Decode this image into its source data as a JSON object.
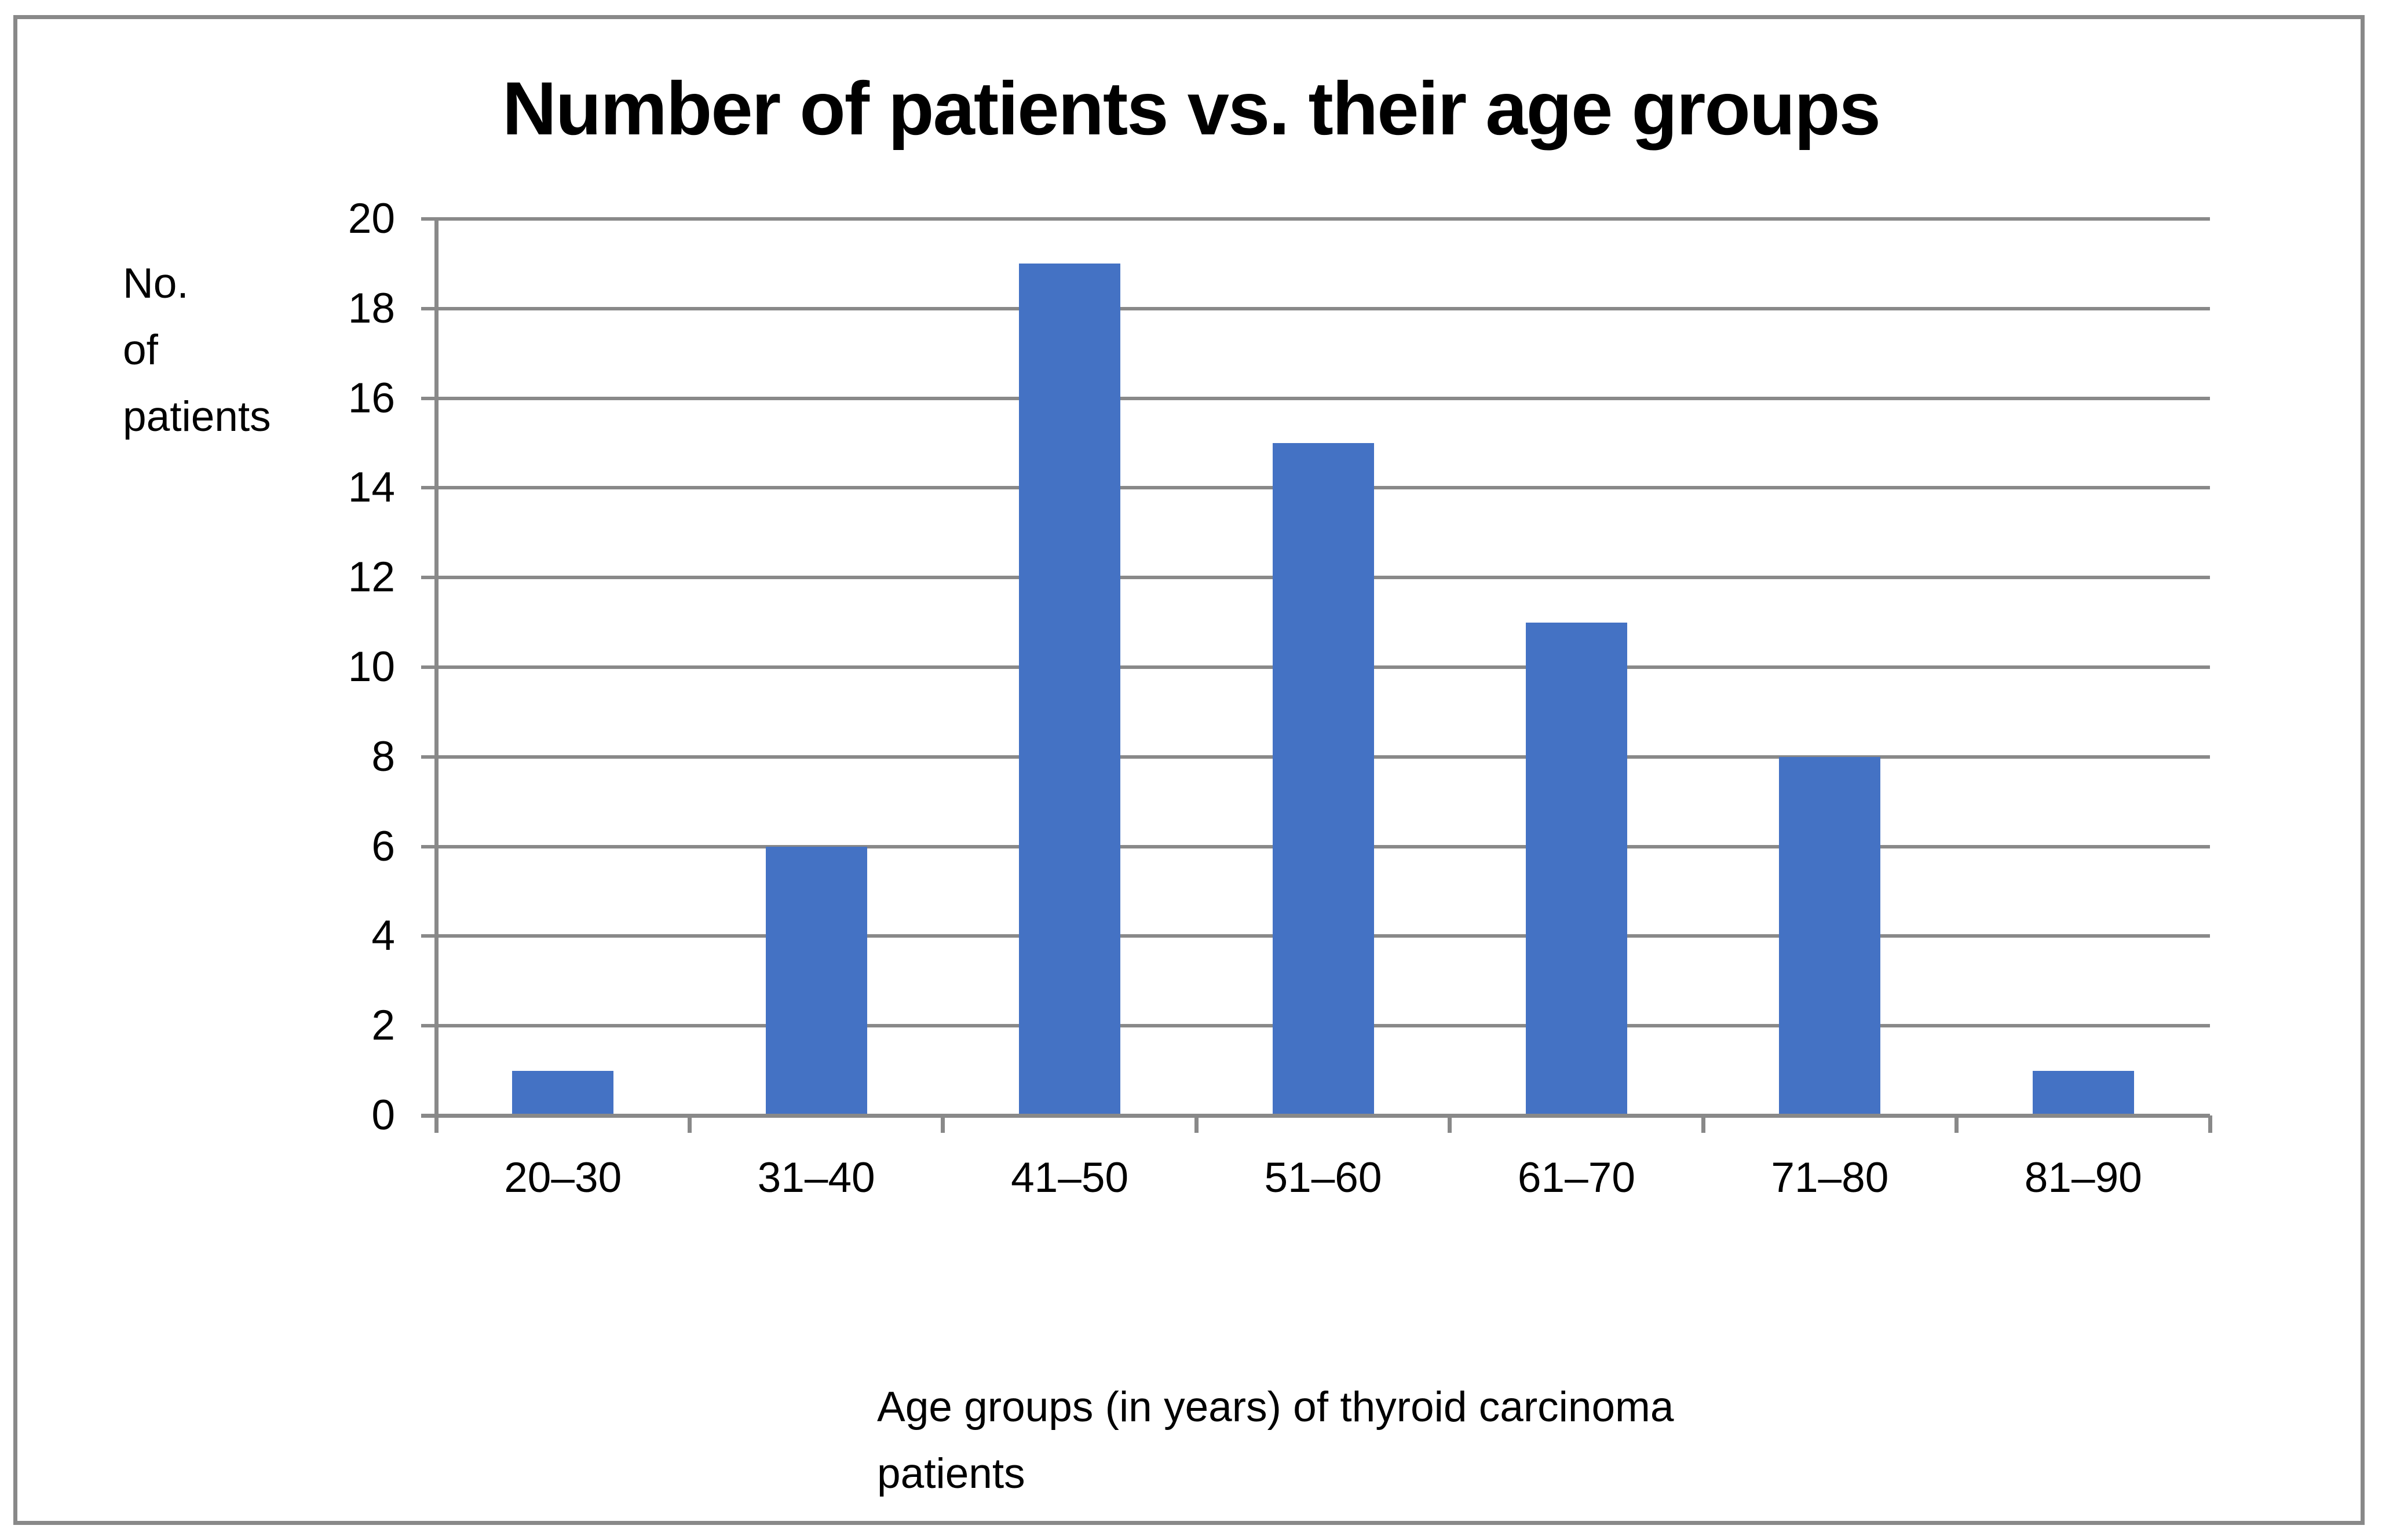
{
  "page": {
    "background": "#ffffff",
    "border_color": "#898989"
  },
  "chart_data": {
    "type": "bar",
    "title": "Number of patients vs. their age groups",
    "categories": [
      "20–30",
      "31–40",
      "41–50",
      "51–60",
      "61–70",
      "71–80",
      "81–90"
    ],
    "values": [
      1,
      6,
      19,
      15,
      11,
      8,
      1
    ],
    "xlabel": "Age groups (in years) of thyroid carcinoma patients",
    "xlabel_lines": [
      "Age groups (in years) of thyroid carcinoma",
      "patients"
    ],
    "ylabel": "No. of patients",
    "ylabel_lines": [
      "No.",
      "of",
      "patients"
    ],
    "ylim": [
      0,
      20
    ],
    "y_tick_step": 2,
    "y_ticks": [
      0,
      2,
      4,
      6,
      8,
      10,
      12,
      14,
      16,
      18,
      20
    ],
    "grid": true,
    "legend": false,
    "gridlines_extend_as_ticks": true,
    "bar_color": "#4472C4",
    "axis_color": "#898989",
    "gridline_color": "#898989",
    "text_color": "#000000"
  }
}
